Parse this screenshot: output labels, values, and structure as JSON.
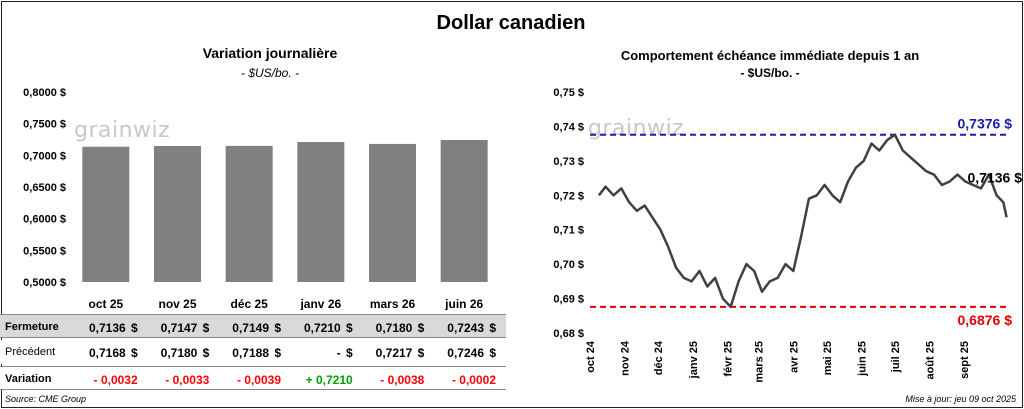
{
  "title": "Dollar canadien",
  "left_panel": {
    "title": "Variation journalière",
    "unit": "- $US/bo. -",
    "watermark": "grainwiz",
    "chart_data": {
      "type": "bar",
      "categories": [
        "oct 25",
        "nov 25",
        "déc 25",
        "janv 26",
        "mars 26",
        "juin 26"
      ],
      "values": [
        0.7136,
        0.7147,
        0.7149,
        0.721,
        0.718,
        0.7243
      ],
      "ylim": [
        0.5,
        0.8
      ],
      "yticks": [
        0.5,
        0.55,
        0.6,
        0.65,
        0.7,
        0.75,
        0.8
      ],
      "ytick_labels": [
        "0,5000 $",
        "0,5500 $",
        "0,6000 $",
        "0,6500 $",
        "0,7000 $",
        "0,7500 $",
        "0,8000 $"
      ],
      "bar_color": "#808080"
    },
    "table": {
      "rows": [
        {
          "label": "Fermeture",
          "cells": [
            "0,7136",
            "0,7147",
            "0,7149",
            "0,7210",
            "0,7180",
            "0,7243"
          ],
          "suffix": "$",
          "bg": "#d9d9d9",
          "color": "#000000"
        },
        {
          "label": "Précédent",
          "cells": [
            "0,7168",
            "0,7180",
            "0,7188",
            "-",
            "0,7217",
            "0,7246"
          ],
          "suffix": "$",
          "bg": "#ffffff",
          "color": "#000000"
        },
        {
          "label": "Variation",
          "cells": [
            "- 0,0032",
            "- 0,0033",
            "- 0,0039",
            "+ 0,7210",
            "- 0,0038",
            "- 0,0002"
          ],
          "suffix": "",
          "bg": "#ffffff",
          "color": "#ff0000",
          "positive_color": "#00a000"
        }
      ]
    }
  },
  "right_panel": {
    "title": "Comportement échéance immédiate depuis 1 an",
    "unit": "- $US/bo. -",
    "watermark": "grainwiz",
    "chart_data": {
      "type": "line",
      "ylim": [
        0.68,
        0.75
      ],
      "yticks": [
        0.68,
        0.69,
        0.7,
        0.71,
        0.72,
        0.73,
        0.74,
        0.75
      ],
      "ytick_labels": [
        "0,68 $",
        "0,69 $",
        "0,70 $",
        "0,71 $",
        "0,72 $",
        "0,73 $",
        "0,74 $",
        "0,75 $"
      ],
      "x_labels": [
        "oct 24",
        "nov 24",
        "déc 24",
        "janv 25",
        "févr 25",
        "mars 25",
        "avr 25",
        "mai 25",
        "juin 25",
        "juil 25",
        "août 25",
        "sept 25"
      ],
      "x": [
        "2024-10-09",
        "2024-10-15",
        "2024-10-22",
        "2024-10-29",
        "2024-11-05",
        "2024-11-12",
        "2024-11-19",
        "2024-11-26",
        "2024-12-03",
        "2024-12-10",
        "2024-12-17",
        "2024-12-24",
        "2024-12-31",
        "2025-01-07",
        "2025-01-14",
        "2025-01-21",
        "2025-01-28",
        "2025-02-04",
        "2025-02-11",
        "2025-02-18",
        "2025-02-25",
        "2025-03-04",
        "2025-03-11",
        "2025-03-18",
        "2025-03-25",
        "2025-04-01",
        "2025-04-08",
        "2025-04-15",
        "2025-04-22",
        "2025-04-29",
        "2025-05-06",
        "2025-05-13",
        "2025-05-20",
        "2025-05-27",
        "2025-06-03",
        "2025-06-10",
        "2025-06-17",
        "2025-06-24",
        "2025-07-01",
        "2025-07-08",
        "2025-07-15",
        "2025-07-22",
        "2025-07-29",
        "2025-08-05",
        "2025-08-12",
        "2025-08-19",
        "2025-08-26",
        "2025-09-02",
        "2025-09-09",
        "2025-09-16",
        "2025-09-23",
        "2025-09-30",
        "2025-10-06",
        "2025-10-09"
      ],
      "values": [
        0.72,
        0.7225,
        0.72,
        0.722,
        0.718,
        0.7155,
        0.717,
        0.7135,
        0.71,
        0.705,
        0.699,
        0.696,
        0.695,
        0.698,
        0.6935,
        0.696,
        0.69,
        0.6876,
        0.695,
        0.7,
        0.698,
        0.692,
        0.695,
        0.696,
        0.7,
        0.698,
        0.708,
        0.719,
        0.72,
        0.723,
        0.72,
        0.718,
        0.724,
        0.728,
        0.73,
        0.735,
        0.733,
        0.736,
        0.7376,
        0.733,
        0.731,
        0.729,
        0.727,
        0.726,
        0.723,
        0.724,
        0.726,
        0.724,
        0.723,
        0.722,
        0.726,
        0.72,
        0.718,
        0.7136
      ],
      "line_color": "#404040",
      "reference_lines": [
        {
          "value": 0.7376,
          "label": "0,7376 $",
          "color": "#1c1caa"
        },
        {
          "value": 0.6876,
          "label": "0,6876 $",
          "color": "#e00000"
        }
      ],
      "last_label": "0,7136 $"
    }
  },
  "footer": {
    "source": "Source: CME Group",
    "updated": "Mise à jour: jeu 09 oct 2025"
  }
}
